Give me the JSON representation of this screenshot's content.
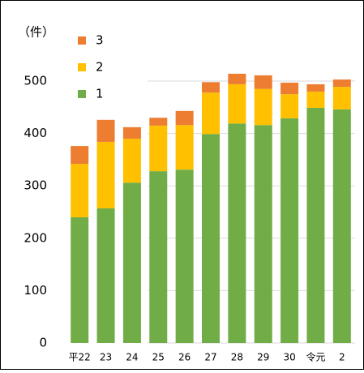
{
  "chart_data": {
    "type": "stacked_bar",
    "y_label": "（件）",
    "categories": [
      "平22",
      "23",
      "24",
      "25",
      "26",
      "27",
      "28",
      "29",
      "30",
      "令元",
      "2"
    ],
    "series": [
      {
        "name": "1",
        "color": "#70ad47",
        "values": [
          240,
          257,
          306,
          328,
          331,
          399,
          419,
          416,
          429,
          449,
          446
        ]
      },
      {
        "name": "2",
        "color": "#ffc000",
        "values": [
          102,
          127,
          84,
          87,
          85,
          79,
          75,
          69,
          46,
          31,
          43
        ]
      },
      {
        "name": "3",
        "color": "#ed7d31",
        "values": [
          34,
          42,
          22,
          15,
          27,
          20,
          20,
          26,
          22,
          14,
          14
        ]
      }
    ],
    "ylim": [
      0,
      600
    ],
    "yticks": [
      0,
      100,
      200,
      300,
      400,
      500
    ],
    "grid": true
  }
}
